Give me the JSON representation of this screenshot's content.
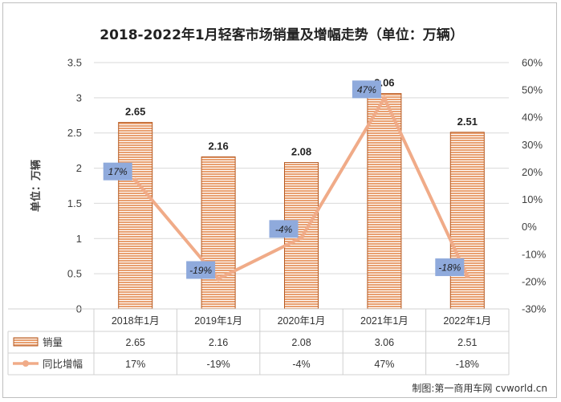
{
  "title": "2018-2022年1月轻客市场销量及增幅走势（单位：万辆）",
  "credit": "制图:第一商用车网 cvworld.cn",
  "chart_data": {
    "type": "bar",
    "title": "2018-2022年1月轻客市场销量及增幅走势（单位：万辆）",
    "ylabel": "单位：万辆",
    "xlabel": "",
    "categories": [
      "2018年1月",
      "2019年1月",
      "2020年1月",
      "2021年1月",
      "2022年1月"
    ],
    "series": [
      {
        "name": "销量",
        "kind": "bar",
        "axis": "left",
        "values": [
          2.65,
          2.16,
          2.08,
          3.06,
          2.51
        ],
        "labels": [
          "2.65",
          "2.16",
          "2.08",
          "3.06",
          "2.51"
        ]
      },
      {
        "name": "同比增幅",
        "kind": "line",
        "axis": "right",
        "values": [
          17,
          -19,
          -4,
          47,
          -18
        ],
        "labels": [
          "17%",
          "-19%",
          "-4%",
          "47%",
          "-18%"
        ]
      }
    ],
    "ylim": [
      0,
      3.5
    ],
    "y_ticks": [
      "0",
      "0.5",
      "1",
      "1.5",
      "2",
      "2.5",
      "3",
      "3.5"
    ],
    "y2lim": [
      -30,
      60
    ],
    "y2_ticks": [
      "-30%",
      "-20%",
      "-10%",
      "0%",
      "10%",
      "20%",
      "30%",
      "40%",
      "50%",
      "60%"
    ],
    "grid": true,
    "legend": "data-table-bottom",
    "colors": {
      "bar": "#e8a071",
      "bar_edge": "#b5581f",
      "line": "#f0ab88",
      "label_box": "#8faadc"
    }
  }
}
